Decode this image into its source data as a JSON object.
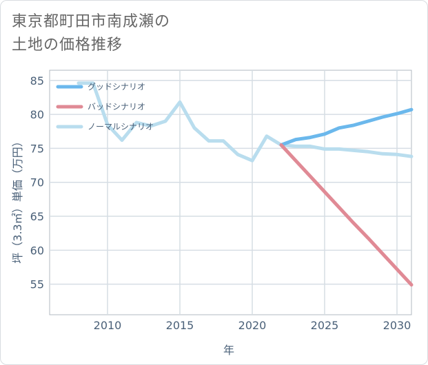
{
  "title": {
    "line1": "東京都町田市南成瀬の",
    "line2": "土地の価格推移"
  },
  "chart_data": {
    "type": "line",
    "xlabel": "年",
    "ylabel": "坪（3.3㎡）単価（万円）",
    "xlim": [
      2006,
      2031
    ],
    "ylim": [
      50.5,
      86.5
    ],
    "xticks": [
      2010,
      2015,
      2020,
      2025,
      2030
    ],
    "yticks": [
      55,
      60,
      65,
      70,
      75,
      80,
      85
    ],
    "grid": true,
    "legend_position": "top-left",
    "series": [
      {
        "name": "グッドシナリオ",
        "color": "#6bb8ec",
        "x": [
          2022,
          2023,
          2024,
          2025,
          2026,
          2027,
          2028,
          2029,
          2030,
          2031
        ],
        "y": [
          75.5,
          76.3,
          76.6,
          77.1,
          78.0,
          78.4,
          79.0,
          79.6,
          80.1,
          80.7
        ]
      },
      {
        "name": "バッドシナリオ",
        "color": "#e08a95",
        "x": [
          2022,
          2023,
          2024,
          2025,
          2026,
          2027,
          2028,
          2029,
          2030,
          2031
        ],
        "y": [
          75.5,
          73.2,
          70.9,
          68.6,
          66.3,
          64.0,
          61.8,
          59.5,
          57.2,
          54.9
        ]
      },
      {
        "name": "ノーマルシナリオ",
        "color": "#b9ddee",
        "x": [
          2008,
          2009,
          2010,
          2011,
          2012,
          2013,
          2014,
          2015,
          2016,
          2017,
          2018,
          2019,
          2020,
          2021,
          2022,
          2023,
          2024,
          2025,
          2026,
          2027,
          2028,
          2029,
          2030,
          2031
        ],
        "y": [
          84.6,
          84.6,
          78.5,
          76.2,
          78.8,
          78.3,
          79.0,
          81.8,
          78.0,
          76.1,
          76.1,
          74.1,
          73.2,
          76.8,
          75.5,
          75.3,
          75.3,
          74.9,
          74.9,
          74.7,
          74.5,
          74.2,
          74.1,
          73.8
        ]
      }
    ]
  }
}
